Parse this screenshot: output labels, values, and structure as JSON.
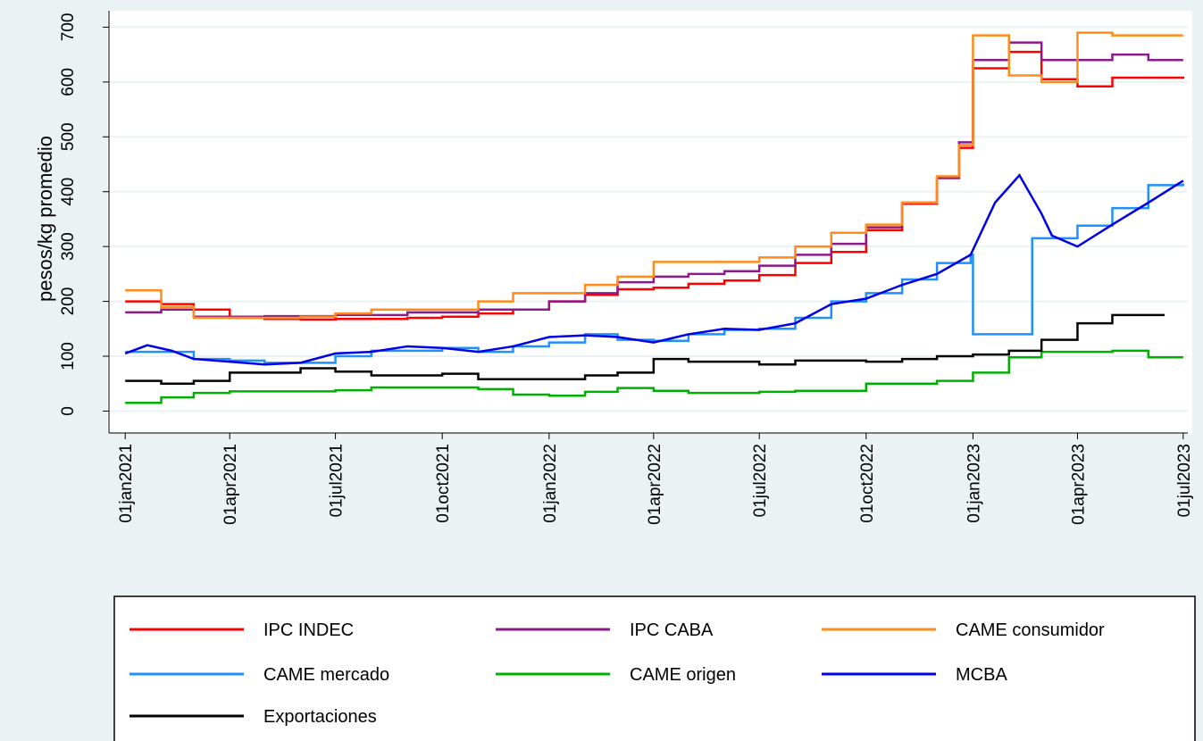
{
  "chart_data": {
    "type": "line",
    "y_label": "pesos/kg promedio",
    "xlim": [
      "2020-12-18",
      "2023-07-05"
    ],
    "xticks": [
      {
        "value": "2021-01-01",
        "label": "01jan2021"
      },
      {
        "value": "2021-04-01",
        "label": "01apr2021"
      },
      {
        "value": "2021-07-01",
        "label": "01jul2021"
      },
      {
        "value": "2021-10-01",
        "label": "01oct2021"
      },
      {
        "value": "2022-01-01",
        "label": "01jan2022"
      },
      {
        "value": "2022-04-01",
        "label": "01apr2022"
      },
      {
        "value": "2022-07-01",
        "label": "01jul2022"
      },
      {
        "value": "2022-10-01",
        "label": "01oct2022"
      },
      {
        "value": "2023-01-01",
        "label": "01jan2023"
      },
      {
        "value": "2023-04-01",
        "label": "01apr2023"
      },
      {
        "value": "2023-07-01",
        "label": "01jul2023"
      }
    ],
    "ylim": [
      -40,
      730
    ],
    "yticks": [
      0,
      100,
      200,
      300,
      400,
      500,
      600,
      700
    ],
    "grid": true,
    "legend": "bottom",
    "series": [
      {
        "name": "IPC INDEC",
        "color": "#ff0000",
        "drawstyle": "steps-post",
        "x": [
          "2021-01-01",
          "2021-02-01",
          "2021-03-01",
          "2021-04-01",
          "2021-05-01",
          "2021-06-01",
          "2021-07-01",
          "2021-08-01",
          "2021-09-01",
          "2021-10-01",
          "2021-11-01",
          "2021-12-01",
          "2022-01-01",
          "2022-02-01",
          "2022-03-01",
          "2022-04-01",
          "2022-05-01",
          "2022-06-01",
          "2022-07-01",
          "2022-08-01",
          "2022-09-01",
          "2022-10-01",
          "2022-11-01",
          "2022-12-01",
          "2022-12-20",
          "2023-01-01",
          "2023-02-01",
          "2023-03-01",
          "2023-04-01",
          "2023-05-01",
          "2023-07-01"
        ],
        "values": [
          200,
          195,
          185,
          170,
          168,
          167,
          168,
          168,
          170,
          172,
          178,
          185,
          200,
          212,
          222,
          225,
          232,
          238,
          248,
          270,
          290,
          330,
          378,
          425,
          480,
          625,
          655,
          605,
          592,
          608,
          610
        ]
      },
      {
        "name": "IPC CABA",
        "color": "#8b1a8b",
        "drawstyle": "steps-post",
        "x": [
          "2021-01-01",
          "2021-02-01",
          "2021-03-01",
          "2021-05-01",
          "2021-07-01",
          "2021-09-01",
          "2021-11-01",
          "2022-01-01",
          "2022-02-01",
          "2022-03-01",
          "2022-04-01",
          "2022-05-01",
          "2022-06-01",
          "2022-07-01",
          "2022-08-01",
          "2022-09-01",
          "2022-10-01",
          "2022-11-01",
          "2022-12-01",
          "2022-12-20",
          "2023-01-01",
          "2023-02-01",
          "2023-03-01",
          "2023-05-01",
          "2023-06-01",
          "2023-07-01"
        ],
        "values": [
          180,
          185,
          172,
          173,
          175,
          180,
          185,
          200,
          215,
          235,
          245,
          250,
          255,
          265,
          285,
          305,
          335,
          380,
          425,
          490,
          640,
          672,
          640,
          650,
          640,
          640
        ]
      },
      {
        "name": "CAME consumidor",
        "color": "#ff8c1a",
        "drawstyle": "steps-post",
        "x": [
          "2021-01-01",
          "2021-02-01",
          "2021-03-01",
          "2021-05-01",
          "2021-06-01",
          "2021-07-01",
          "2021-08-01",
          "2021-10-01",
          "2021-11-01",
          "2021-12-01",
          "2022-01-01",
          "2022-02-01",
          "2022-03-01",
          "2022-04-01",
          "2022-06-01",
          "2022-07-01",
          "2022-08-01",
          "2022-09-01",
          "2022-10-01",
          "2022-11-01",
          "2022-12-01",
          "2022-12-20",
          "2023-01-01",
          "2023-02-01",
          "2023-03-01",
          "2023-04-01",
          "2023-05-01",
          "2023-07-01"
        ],
        "values": [
          220,
          190,
          170,
          170,
          172,
          178,
          185,
          185,
          200,
          215,
          215,
          230,
          245,
          272,
          272,
          280,
          300,
          325,
          340,
          380,
          428,
          485,
          685,
          612,
          600,
          690,
          685,
          685
        ]
      },
      {
        "name": "CAME mercado",
        "color": "#1e90ff",
        "drawstyle": "steps-post",
        "x": [
          "2021-01-01",
          "2021-03-01",
          "2021-04-01",
          "2021-05-01",
          "2021-06-01",
          "2021-07-01",
          "2021-08-01",
          "2021-10-01",
          "2021-11-01",
          "2021-12-01",
          "2022-01-01",
          "2022-02-01",
          "2022-03-01",
          "2022-04-01",
          "2022-05-01",
          "2022-06-01",
          "2022-07-01",
          "2022-08-01",
          "2022-09-01",
          "2022-10-01",
          "2022-11-01",
          "2022-12-01",
          "2022-12-30",
          "2023-01-01",
          "2023-02-21",
          "2023-03-15",
          "2023-04-01",
          "2023-05-01",
          "2023-06-01",
          "2023-07-01"
        ],
        "values": [
          108,
          95,
          92,
          88,
          88,
          100,
          110,
          115,
          108,
          118,
          125,
          140,
          130,
          128,
          140,
          148,
          150,
          170,
          200,
          215,
          240,
          270,
          285,
          140,
          315,
          315,
          338,
          370,
          412,
          415
        ]
      },
      {
        "name": "CAME origen",
        "color": "#00b000",
        "drawstyle": "steps-post",
        "x": [
          "2021-01-01",
          "2021-02-01",
          "2021-03-01",
          "2021-04-01",
          "2021-07-01",
          "2021-08-01",
          "2021-11-01",
          "2021-12-01",
          "2022-01-01",
          "2022-02-01",
          "2022-03-01",
          "2022-04-01",
          "2022-05-01",
          "2022-07-01",
          "2022-08-01",
          "2022-10-01",
          "2022-12-01",
          "2023-01-01",
          "2023-02-01",
          "2023-03-01",
          "2023-05-01",
          "2023-06-01",
          "2023-07-01"
        ],
        "values": [
          15,
          25,
          33,
          36,
          38,
          43,
          40,
          30,
          28,
          35,
          42,
          37,
          33,
          35,
          37,
          50,
          55,
          70,
          98,
          108,
          110,
          98,
          98
        ]
      },
      {
        "name": "MCBA",
        "color": "#0000e6",
        "drawstyle": "default",
        "x": [
          "2021-01-01",
          "2021-01-20",
          "2021-02-10",
          "2021-03-01",
          "2021-04-01",
          "2021-05-01",
          "2021-06-01",
          "2021-07-01",
          "2021-08-01",
          "2021-09-01",
          "2021-10-01",
          "2021-11-01",
          "2021-12-01",
          "2022-01-01",
          "2022-02-01",
          "2022-03-01",
          "2022-04-01",
          "2022-05-01",
          "2022-06-01",
          "2022-07-01",
          "2022-08-01",
          "2022-09-01",
          "2022-10-01",
          "2022-11-01",
          "2022-12-01",
          "2022-12-30",
          "2023-01-20",
          "2023-02-10",
          "2023-03-01",
          "2023-03-10",
          "2023-04-01",
          "2023-05-01",
          "2023-06-01",
          "2023-07-01"
        ],
        "values": [
          105,
          120,
          110,
          95,
          90,
          85,
          88,
          105,
          108,
          118,
          115,
          108,
          118,
          135,
          138,
          135,
          125,
          140,
          150,
          148,
          160,
          195,
          205,
          230,
          250,
          285,
          380,
          430,
          360,
          320,
          300,
          340,
          380,
          420
        ]
      },
      {
        "name": "Exportaciones",
        "color": "#000000",
        "drawstyle": "steps-post",
        "x": [
          "2021-01-01",
          "2021-02-01",
          "2021-03-01",
          "2021-04-01",
          "2021-06-01",
          "2021-07-01",
          "2021-08-01",
          "2021-10-01",
          "2021-11-01",
          "2022-01-01",
          "2022-02-01",
          "2022-03-01",
          "2022-04-01",
          "2022-05-01",
          "2022-07-01",
          "2022-08-01",
          "2022-10-01",
          "2022-11-01",
          "2022-12-01",
          "2023-01-01",
          "2023-02-01",
          "2023-03-01",
          "2023-04-01",
          "2023-05-01",
          "2023-06-15"
        ],
        "values": [
          55,
          50,
          55,
          70,
          78,
          72,
          65,
          68,
          58,
          58,
          65,
          70,
          95,
          90,
          85,
          92,
          90,
          95,
          100,
          103,
          110,
          130,
          160,
          175,
          175
        ]
      }
    ]
  }
}
